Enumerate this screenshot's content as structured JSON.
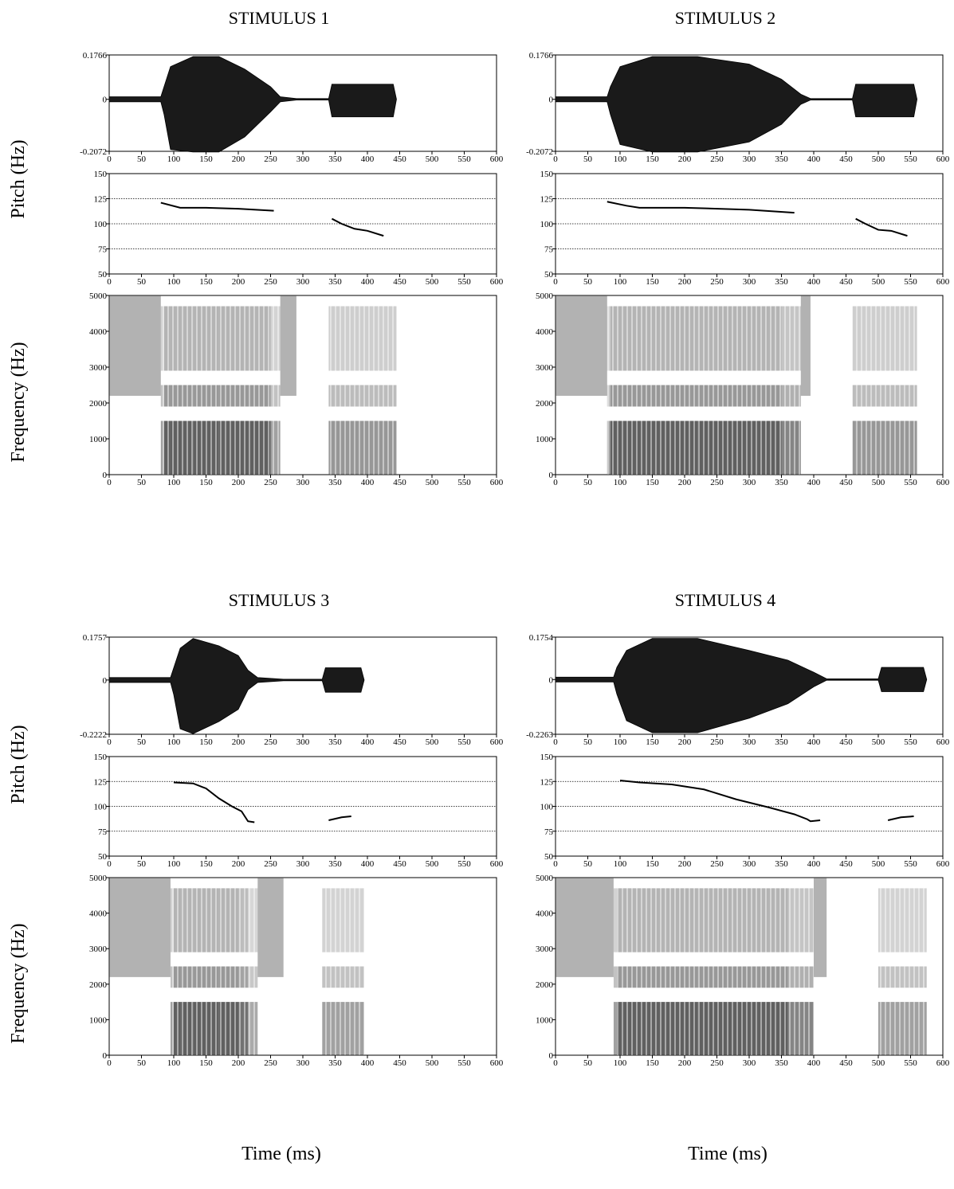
{
  "chart_data": [
    {
      "type": "line",
      "title": "STIMULUS 1",
      "xlim": [
        0,
        600
      ],
      "xticks": [
        0,
        50,
        100,
        150,
        200,
        250,
        300,
        350,
        400,
        450,
        500,
        550,
        600
      ],
      "waveform": {
        "ylim": [
          -0.2072,
          0.1766
        ],
        "yticks": [
          -0.2072,
          0,
          0.1766
        ],
        "x": [
          0,
          80,
          85,
          95,
          130,
          170,
          210,
          250,
          265,
          290,
          340,
          345,
          440,
          445
        ],
        "max": [
          0.01,
          0.01,
          0.05,
          0.13,
          0.17,
          0.17,
          0.12,
          0.05,
          0.01,
          0.003,
          0.003,
          0.06,
          0.06,
          0
        ],
        "min": [
          -0.01,
          -0.01,
          -0.06,
          -0.2,
          -0.21,
          -0.21,
          -0.15,
          -0.05,
          -0.01,
          -0.003,
          -0.003,
          -0.07,
          -0.07,
          0
        ]
      },
      "pitch": {
        "ylim": [
          50,
          150
        ],
        "yticks": [
          50,
          75,
          100,
          125,
          150
        ],
        "grid": true,
        "x": [
          80,
          110,
          150,
          200,
          255,
          null,
          345,
          360,
          380,
          400,
          425
        ],
        "values": [
          121,
          116,
          116,
          115,
          113,
          null,
          105,
          100,
          95,
          93,
          88
        ]
      },
      "spectrogram": {
        "ylim": [
          0,
          5000
        ],
        "yticks": [
          0,
          1000,
          2000,
          3000,
          4000,
          5000
        ]
      }
    },
    {
      "type": "line",
      "title": "STIMULUS 2",
      "xlim": [
        0,
        600
      ],
      "xticks": [
        0,
        50,
        100,
        150,
        200,
        250,
        300,
        350,
        400,
        450,
        500,
        550,
        600
      ],
      "waveform": {
        "ylim": [
          -0.2072,
          0.1766
        ],
        "yticks": [
          -0.2072,
          0,
          0.1766
        ],
        "x": [
          0,
          80,
          85,
          100,
          150,
          220,
          300,
          350,
          380,
          395,
          460,
          465,
          555,
          560
        ],
        "max": [
          0.01,
          0.01,
          0.05,
          0.13,
          0.17,
          0.17,
          0.14,
          0.08,
          0.02,
          0.003,
          0.003,
          0.06,
          0.06,
          0
        ],
        "min": [
          -0.01,
          -0.01,
          -0.06,
          -0.18,
          -0.21,
          -0.21,
          -0.17,
          -0.1,
          -0.02,
          -0.003,
          -0.003,
          -0.07,
          -0.07,
          0
        ]
      },
      "pitch": {
        "ylim": [
          50,
          150
        ],
        "yticks": [
          50,
          75,
          100,
          125,
          150
        ],
        "grid": true,
        "x": [
          80,
          110,
          130,
          200,
          300,
          370,
          null,
          465,
          480,
          500,
          520,
          545
        ],
        "values": [
          122,
          118,
          116,
          116,
          114,
          111,
          null,
          105,
          100,
          94,
          93,
          88
        ]
      },
      "spectrogram": {
        "ylim": [
          0,
          5000
        ],
        "yticks": [
          0,
          1000,
          2000,
          3000,
          4000,
          5000
        ]
      }
    },
    {
      "type": "line",
      "title": "STIMULUS 3",
      "xlim": [
        0,
        600
      ],
      "xticks": [
        0,
        50,
        100,
        150,
        200,
        250,
        300,
        350,
        400,
        450,
        500,
        550,
        600
      ],
      "waveform": {
        "ylim": [
          -0.2222,
          0.1757
        ],
        "yticks": [
          -0.2222,
          0,
          0.1757
        ],
        "x": [
          0,
          95,
          100,
          110,
          130,
          170,
          200,
          215,
          230,
          270,
          330,
          335,
          390,
          395
        ],
        "max": [
          0.01,
          0.01,
          0.05,
          0.13,
          0.17,
          0.14,
          0.1,
          0.04,
          0.01,
          0.003,
          0.003,
          0.05,
          0.05,
          0
        ],
        "min": [
          -0.01,
          -0.01,
          -0.06,
          -0.2,
          -0.22,
          -0.17,
          -0.12,
          -0.04,
          -0.01,
          -0.003,
          -0.003,
          -0.05,
          -0.05,
          0
        ]
      },
      "pitch": {
        "ylim": [
          50,
          150
        ],
        "yticks": [
          50,
          75,
          100,
          125,
          150
        ],
        "grid": true,
        "x": [
          100,
          130,
          150,
          170,
          190,
          205,
          215,
          225,
          null,
          340,
          360,
          375
        ],
        "values": [
          124,
          123,
          118,
          108,
          100,
          95,
          85,
          84,
          null,
          86,
          89,
          90
        ]
      },
      "spectrogram": {
        "ylim": [
          0,
          5000
        ],
        "yticks": [
          0,
          1000,
          2000,
          3000,
          4000,
          5000
        ]
      }
    },
    {
      "type": "line",
      "title": "STIMULUS 4",
      "xlim": [
        0,
        600
      ],
      "xticks": [
        0,
        50,
        100,
        150,
        200,
        250,
        300,
        350,
        400,
        450,
        500,
        550,
        600
      ],
      "waveform": {
        "ylim": [
          -0.2263,
          0.1754
        ],
        "yticks": [
          -0.2263,
          0,
          0.1754
        ],
        "x": [
          0,
          90,
          95,
          110,
          150,
          220,
          300,
          360,
          400,
          420,
          500,
          505,
          570,
          575
        ],
        "max": [
          0.01,
          0.01,
          0.05,
          0.12,
          0.17,
          0.17,
          0.12,
          0.08,
          0.03,
          0.003,
          0.003,
          0.05,
          0.05,
          0
        ],
        "min": [
          -0.01,
          -0.01,
          -0.06,
          -0.17,
          -0.22,
          -0.22,
          -0.16,
          -0.1,
          -0.03,
          -0.003,
          -0.003,
          -0.05,
          -0.05,
          0
        ]
      },
      "pitch": {
        "ylim": [
          50,
          150
        ],
        "yticks": [
          50,
          75,
          100,
          125,
          150
        ],
        "grid": true,
        "x": [
          100,
          130,
          180,
          230,
          280,
          330,
          370,
          390,
          395,
          410,
          null,
          515,
          535,
          555
        ],
        "values": [
          126,
          124,
          122,
          117,
          107,
          99,
          92,
          87,
          85,
          86,
          null,
          86,
          89,
          90
        ]
      },
      "spectrogram": {
        "ylim": [
          0,
          5000
        ],
        "yticks": [
          0,
          1000,
          2000,
          3000,
          4000,
          5000
        ]
      }
    }
  ],
  "row_labels": [
    {
      "pitch": "Pitch (Hz)",
      "frequency": "Frequency (Hz)"
    },
    {
      "pitch": "Pitch (Hz)",
      "frequency": "Frequency (Hz)"
    }
  ],
  "x_labels": [
    "Time (ms)",
    "Time (ms)"
  ]
}
